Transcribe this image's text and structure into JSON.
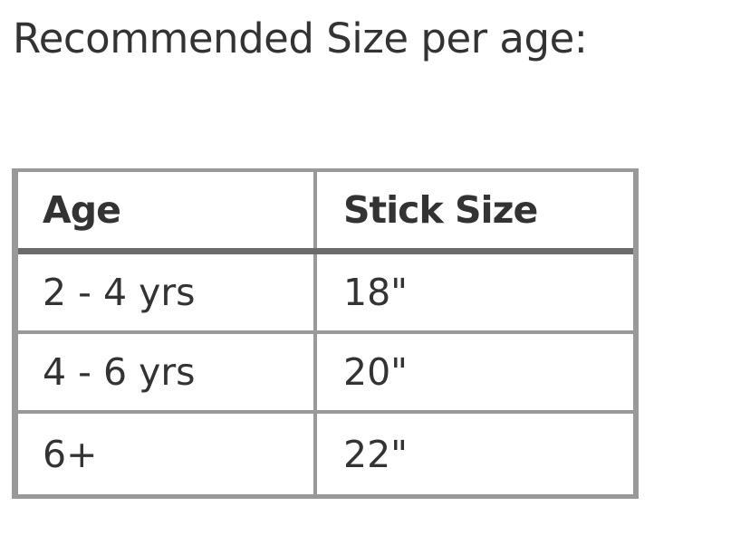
{
  "title": "Recommended Size per age:",
  "table": {
    "headers": [
      "Age",
      "Stick Size"
    ],
    "rows": [
      [
        "2 - 4 yrs",
        "18\""
      ],
      [
        "4 - 6 yrs",
        "20\""
      ],
      [
        "6+",
        "22\""
      ]
    ]
  }
}
